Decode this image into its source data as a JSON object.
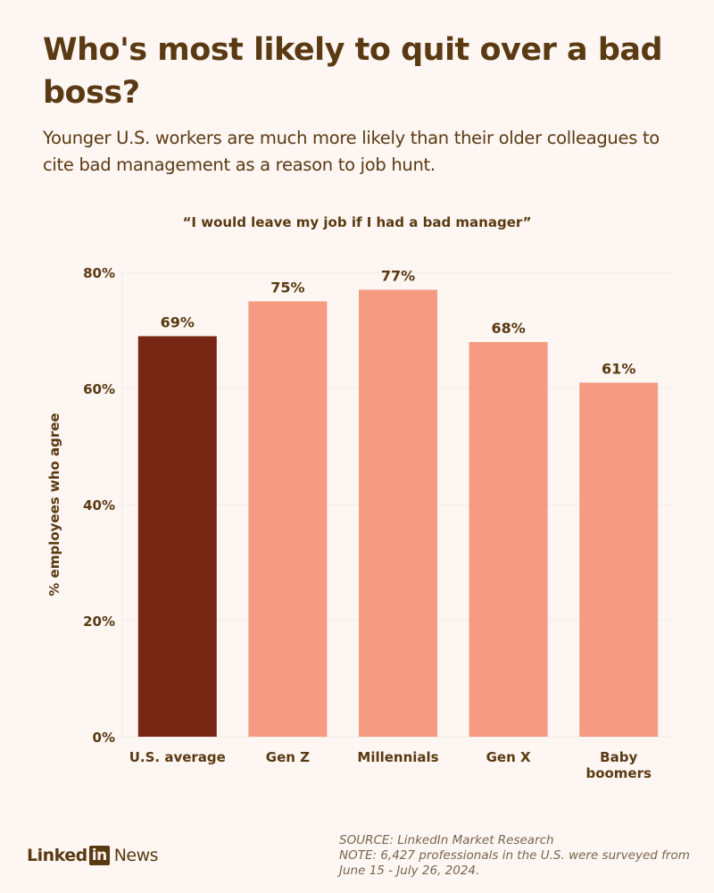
{
  "header": {
    "title": "Who's most likely to quit over a bad boss?",
    "subtitle": "Younger U.S. workers are much more likely than their older colleagues to cite bad management as a reason to job hunt."
  },
  "chart_data": {
    "type": "bar",
    "title": "“I would leave my job if I had a bad manager”",
    "xlabel": "",
    "ylabel": "% employees who agree",
    "categories": [
      "U.S. average",
      "Gen Z",
      "Millennials",
      "Gen X",
      "Baby boomers"
    ],
    "values": [
      69,
      75,
      77,
      68,
      61
    ],
    "data_labels": [
      "69%",
      "75%",
      "77%",
      "68%",
      "61%"
    ],
    "ylim": [
      0,
      80
    ],
    "yticks": [
      0,
      20,
      40,
      60,
      80
    ],
    "ytick_labels": [
      "0%",
      "20%",
      "40%",
      "60%",
      "80%"
    ],
    "grid": true,
    "colors": [
      "#772713",
      "#f59b82",
      "#f59b82",
      "#f59b82",
      "#f59b82"
    ]
  },
  "footer": {
    "logo_text": "LinkedIn News",
    "source": "SOURCE: LinkedIn Market Research",
    "note_line1": "NOTE: 6,427 professionals in the U.S. were surveyed from",
    "note_line2": "June 15 - July 26, 2024."
  }
}
